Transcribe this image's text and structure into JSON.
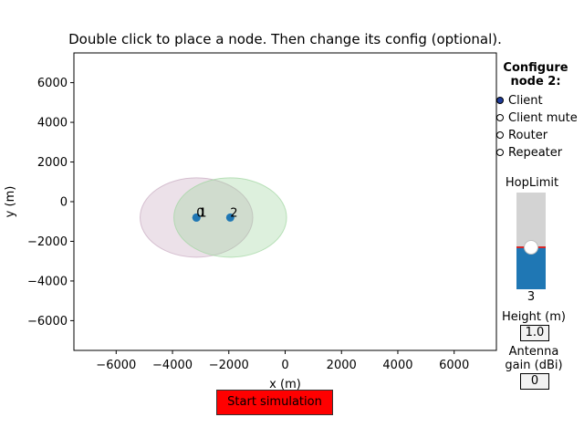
{
  "title": "Double click to place a node. Then change its config (optional).",
  "colors": {
    "axes_bg": "#ffffff",
    "node": "#1f77b4",
    "range_circle_1": "#c8a9c0",
    "range_circle_2": "#9fd59f",
    "slider_fill": "#1f77b4",
    "slider_track": "#d3d3d3",
    "slider_value_line": "#d62728",
    "radio_checked": "#1f3c9a",
    "start_button": "#ff0000"
  },
  "chart_data": {
    "type": "scatter",
    "title": "Double click to place a node. Then change its config (optional).",
    "xlabel": "x (m)",
    "ylabel": "y (m)",
    "xlim": [
      -7500,
      7500
    ],
    "ylim": [
      -7500,
      7500
    ],
    "x_ticks": [
      -6000,
      -4000,
      -2000,
      0,
      2000,
      4000,
      6000
    ],
    "y_ticks": [
      -6000,
      -4000,
      -2000,
      0,
      2000,
      4000,
      6000
    ],
    "grid": false,
    "nodes": [
      {
        "label": "0",
        "x": -3150,
        "y": -800
      },
      {
        "label": "1",
        "x": -3150,
        "y": -800
      },
      {
        "label": "2",
        "x": -1950,
        "y": -800
      }
    ],
    "range_circles": [
      {
        "cx": -3150,
        "cy": -800,
        "r": 2000,
        "color": "#c8a9c0"
      },
      {
        "cx": -1950,
        "cy": -800,
        "r": 2000,
        "color": "#9fd59f"
      }
    ]
  },
  "config": {
    "title_line1": "Configure",
    "title_line2": "node 2:",
    "roles": [
      "Client",
      "Client mute",
      "Router",
      "Repeater"
    ],
    "selected_role": "Client",
    "hop_limit": {
      "label": "HopLimit",
      "value": "3",
      "fraction": 0.43
    },
    "height_label": "Height (m)",
    "height_value": "1.0",
    "antenna_label_line1": "Antenna",
    "antenna_label_line2": "gain (dBi)",
    "antenna_value": "0"
  },
  "start_button": "Start simulation"
}
